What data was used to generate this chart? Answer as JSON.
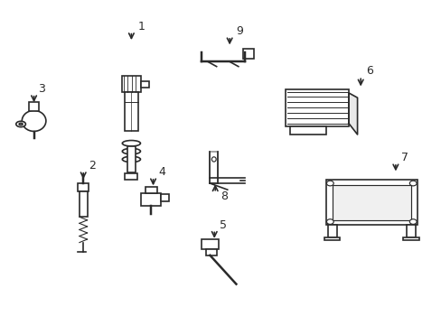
{
  "background_color": "#ffffff",
  "line_color": "#2a2a2a",
  "line_width": 1.2,
  "fig_width": 4.89,
  "fig_height": 3.6,
  "dpi": 100,
  "label_fontsize": 9
}
